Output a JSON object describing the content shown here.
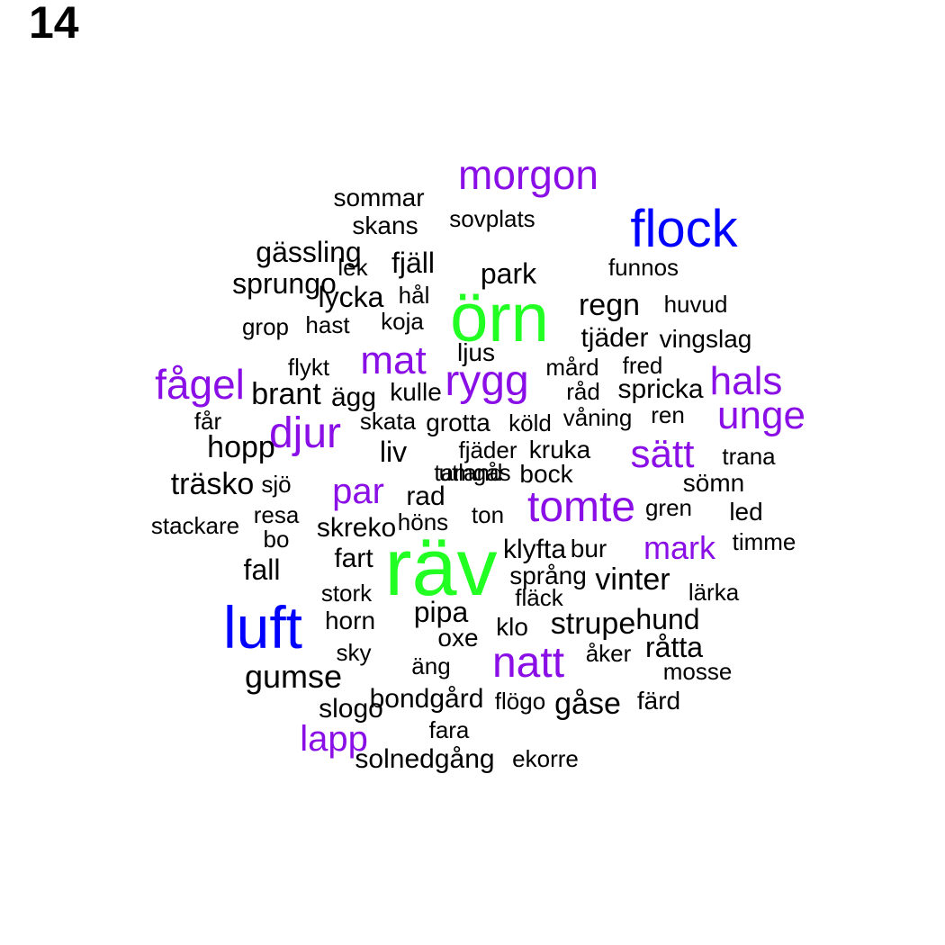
{
  "panel_number": "14",
  "colors": {
    "green": "#22ff22",
    "blue": "#0000ff",
    "purple": "#8a0fe6",
    "black": "#000000"
  },
  "words": [
    {
      "text": "räv",
      "color": "green"
    },
    {
      "text": "örn",
      "color": "green"
    },
    {
      "text": "luft",
      "color": "blue"
    },
    {
      "text": "flock",
      "color": "blue"
    },
    {
      "text": "morgon",
      "color": "purple"
    },
    {
      "text": "fågel",
      "color": "purple"
    },
    {
      "text": "mat",
      "color": "purple"
    },
    {
      "text": "rygg",
      "color": "purple"
    },
    {
      "text": "hals",
      "color": "purple"
    },
    {
      "text": "unge",
      "color": "purple"
    },
    {
      "text": "djur",
      "color": "purple"
    },
    {
      "text": "sätt",
      "color": "purple"
    },
    {
      "text": "par",
      "color": "purple"
    },
    {
      "text": "tomte",
      "color": "purple"
    },
    {
      "text": "mark",
      "color": "purple"
    },
    {
      "text": "natt",
      "color": "purple"
    },
    {
      "text": "lapp",
      "color": "purple"
    },
    {
      "text": "sommar",
      "color": "black"
    },
    {
      "text": "skans",
      "color": "black"
    },
    {
      "text": "sovplats",
      "color": "black"
    },
    {
      "text": "gässling",
      "color": "black"
    },
    {
      "text": "lek",
      "color": "black"
    },
    {
      "text": "fjäll",
      "color": "black"
    },
    {
      "text": "park",
      "color": "black"
    },
    {
      "text": "funnos",
      "color": "black"
    },
    {
      "text": "sprungo",
      "color": "black"
    },
    {
      "text": "lycka",
      "color": "black"
    },
    {
      "text": "hål",
      "color": "black"
    },
    {
      "text": "regn",
      "color": "black"
    },
    {
      "text": "huvud",
      "color": "black"
    },
    {
      "text": "grop",
      "color": "black"
    },
    {
      "text": "hast",
      "color": "black"
    },
    {
      "text": "koja",
      "color": "black"
    },
    {
      "text": "tjäder",
      "color": "black"
    },
    {
      "text": "vingslag",
      "color": "black"
    },
    {
      "text": "ljus",
      "color": "black"
    },
    {
      "text": "flykt",
      "color": "black"
    },
    {
      "text": "mård",
      "color": "black"
    },
    {
      "text": "fred",
      "color": "black"
    },
    {
      "text": "brant",
      "color": "black"
    },
    {
      "text": "ägg",
      "color": "black"
    },
    {
      "text": "kulle",
      "color": "black"
    },
    {
      "text": "råd",
      "color": "black"
    },
    {
      "text": "spricka",
      "color": "black"
    },
    {
      "text": "får",
      "color": "black"
    },
    {
      "text": "skata",
      "color": "black"
    },
    {
      "text": "grotta",
      "color": "black"
    },
    {
      "text": "köld",
      "color": "black"
    },
    {
      "text": "våning",
      "color": "black"
    },
    {
      "text": "ren",
      "color": "black"
    },
    {
      "text": "hopp",
      "color": "black"
    },
    {
      "text": "liv",
      "color": "black"
    },
    {
      "text": "fjäder",
      "color": "black"
    },
    {
      "text": "kruka",
      "color": "black"
    },
    {
      "text": "trana",
      "color": "black"
    },
    {
      "text": "utland",
      "color": "black"
    },
    {
      "text": "bock",
      "color": "black"
    },
    {
      "text": "träsko",
      "color": "black"
    },
    {
      "text": "sjö",
      "color": "black"
    },
    {
      "text": "sömn",
      "color": "black"
    },
    {
      "text": "rad",
      "color": "black"
    },
    {
      "text": "resa",
      "color": "black"
    },
    {
      "text": "höns",
      "color": "black"
    },
    {
      "text": "ton",
      "color": "black"
    },
    {
      "text": "gren",
      "color": "black"
    },
    {
      "text": "led",
      "color": "black"
    },
    {
      "text": "stackare",
      "color": "black"
    },
    {
      "text": "skreko",
      "color": "black"
    },
    {
      "text": "bo",
      "color": "black"
    },
    {
      "text": "timme",
      "color": "black"
    },
    {
      "text": "klyfta",
      "color": "black"
    },
    {
      "text": "bur",
      "color": "black"
    },
    {
      "text": "fart",
      "color": "black"
    },
    {
      "text": "fall",
      "color": "black"
    },
    {
      "text": "språng",
      "color": "black"
    },
    {
      "text": "vinter",
      "color": "black"
    },
    {
      "text": "stork",
      "color": "black"
    },
    {
      "text": "fläck",
      "color": "black"
    },
    {
      "text": "lärka",
      "color": "black"
    },
    {
      "text": "pipa",
      "color": "black"
    },
    {
      "text": "horn",
      "color": "black"
    },
    {
      "text": "strupe",
      "color": "black"
    },
    {
      "text": "hund",
      "color": "black"
    },
    {
      "text": "klo",
      "color": "black"
    },
    {
      "text": "oxe",
      "color": "black"
    },
    {
      "text": "sky",
      "color": "black"
    },
    {
      "text": "åker",
      "color": "black"
    },
    {
      "text": "råtta",
      "color": "black"
    },
    {
      "text": "äng",
      "color": "black"
    },
    {
      "text": "gumse",
      "color": "black"
    },
    {
      "text": "mosse",
      "color": "black"
    },
    {
      "text": "bondgård",
      "color": "black"
    },
    {
      "text": "flögo",
      "color": "black"
    },
    {
      "text": "gåse",
      "color": "black"
    },
    {
      "text": "färd",
      "color": "black"
    },
    {
      "text": "slogo",
      "color": "black"
    },
    {
      "text": "fara",
      "color": "black"
    },
    {
      "text": "solnedgång",
      "color": "black"
    },
    {
      "text": "ekorre",
      "color": "black"
    },
    {
      "text": "tamgås",
      "color": "black"
    }
  ]
}
